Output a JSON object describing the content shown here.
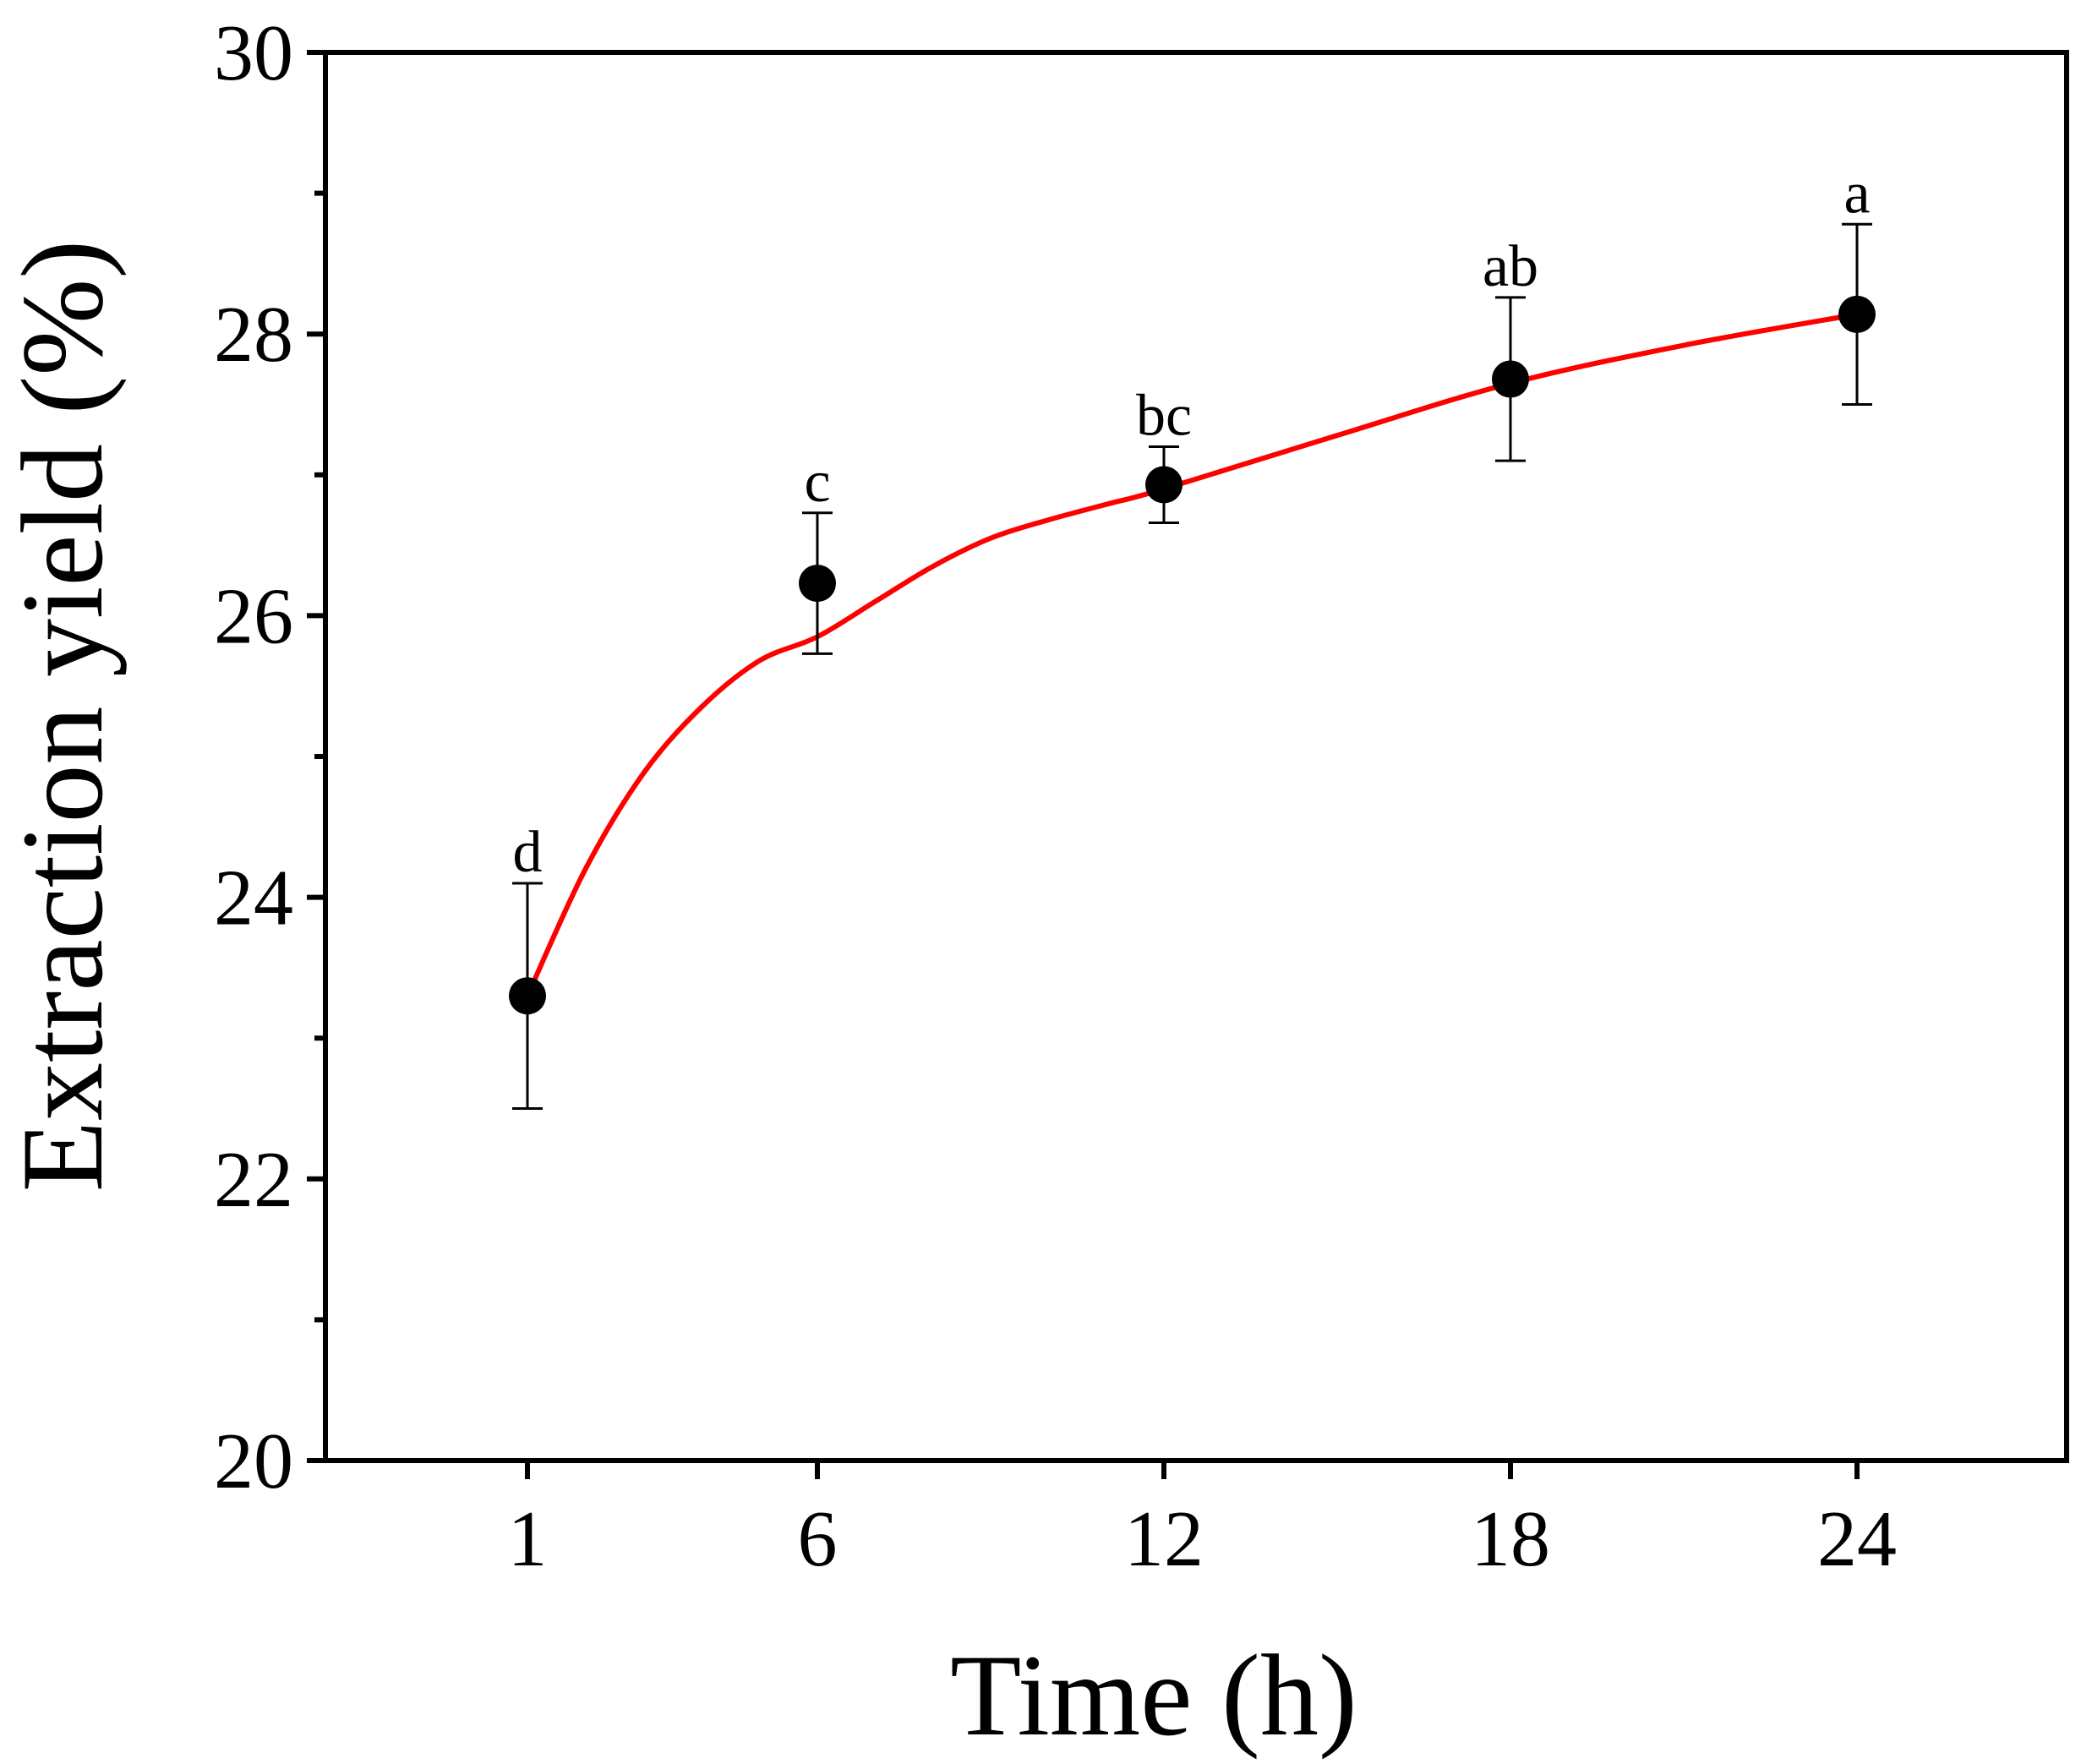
{
  "colors": {
    "fit_line": "#ff0000",
    "marker": "#000000",
    "axis": "#000000",
    "background": "#ffffff"
  },
  "chart_data": {
    "type": "scatter",
    "title": "",
    "xlabel": "Time (h)",
    "ylabel": "Extraction yield (%)",
    "x_type": "categorical",
    "x": [
      1,
      6,
      12,
      18,
      24
    ],
    "x_tick_labels": [
      "1",
      "6",
      "12",
      "18",
      "24"
    ],
    "ylim": [
      20,
      30
    ],
    "y_ticks": [
      20,
      22,
      24,
      26,
      28,
      30
    ],
    "y_tick_labels": [
      "20",
      "22",
      "24",
      "26",
      "28",
      "30"
    ],
    "y_minor_ticks": [
      21,
      23,
      25,
      27,
      29
    ],
    "grid": false,
    "legend": false,
    "series": [
      {
        "values": [
          23.3,
          26.23,
          26.93,
          27.68,
          28.14
        ],
        "error": [
          0.8,
          0.5,
          0.27,
          0.58,
          0.64
        ],
        "significance_labels": [
          "d",
          "c",
          "bc",
          "ab",
          "a"
        ],
        "marker": "filled-circle",
        "color": "#000000"
      }
    ],
    "fit_line": {
      "style": "smooth-curve",
      "color": "#ff0000",
      "x": [
        1,
        2,
        3,
        4,
        5,
        6,
        7,
        8,
        9,
        10,
        11,
        12,
        15,
        18,
        21,
        24
      ],
      "y": [
        23.3,
        24.2,
        24.88,
        25.35,
        25.68,
        25.85,
        26.1,
        26.35,
        26.55,
        26.68,
        26.79,
        26.9,
        27.28,
        27.65,
        27.92,
        28.14
      ]
    }
  }
}
